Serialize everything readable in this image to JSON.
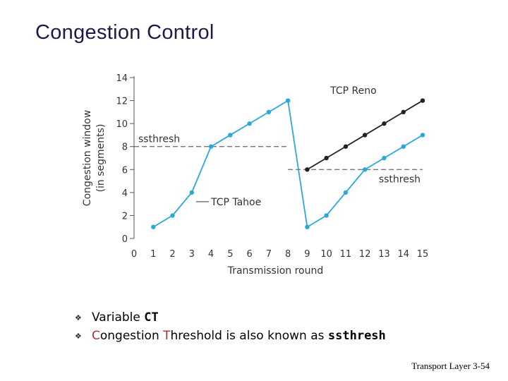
{
  "slide": {
    "title": "Congestion Control",
    "footer": "Transport Layer 3-54"
  },
  "bullets": {
    "line1_prefix": "Variable ",
    "line1_code": "CT",
    "line2_c": "C",
    "line2_a": "ongestion ",
    "line2_t": "T",
    "line2_b": "hreshold  is also known as ",
    "line2_code": "ssthresh"
  },
  "chart_data": {
    "type": "line",
    "xlabel": "Transmission round",
    "ylabel_line1": "Congestion window",
    "ylabel_line2": "(in segments)",
    "xlim": [
      0,
      15
    ],
    "ylim": [
      0,
      14
    ],
    "xticks": [
      0,
      1,
      2,
      3,
      4,
      5,
      6,
      7,
      8,
      9,
      10,
      11,
      12,
      13,
      14,
      15
    ],
    "yticks": [
      0,
      2,
      4,
      6,
      8,
      10,
      12,
      14
    ],
    "series": [
      {
        "name": "TCP Tahoe",
        "color": "#2aa8dc",
        "x": [
          1,
          2,
          3,
          4,
          5,
          6,
          7,
          8,
          9,
          10,
          11,
          12,
          13,
          14,
          15
        ],
        "y": [
          1,
          2,
          4,
          8,
          9,
          10,
          11,
          12,
          1,
          2,
          4,
          6,
          7,
          8,
          9
        ]
      },
      {
        "name": "TCP Reno",
        "color": "#222222",
        "x": [
          9,
          10,
          11,
          12,
          13,
          14,
          15
        ],
        "y": [
          6,
          7,
          8,
          9,
          10,
          11,
          12
        ]
      }
    ],
    "thresholds": [
      {
        "label": "ssthresh",
        "y": 8,
        "x_start": 0,
        "x_end": 8
      },
      {
        "label": "ssthresh",
        "y": 6,
        "x_start": 8,
        "x_end": 15
      }
    ]
  }
}
